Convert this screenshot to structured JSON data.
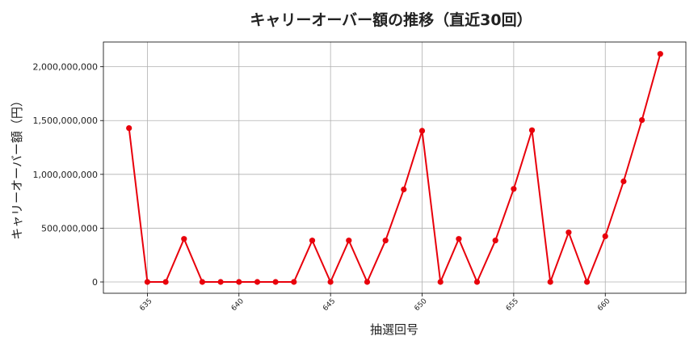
{
  "chart_data": {
    "type": "line",
    "title": "キャリーオーバー額の推移（直近30回）",
    "xlabel": "抽選回号",
    "ylabel": "キャリーオーバー額（円）",
    "x": [
      634,
      635,
      636,
      637,
      638,
      639,
      640,
      641,
      642,
      643,
      644,
      645,
      646,
      647,
      648,
      649,
      650,
      651,
      652,
      653,
      654,
      655,
      656,
      657,
      658,
      659,
      660,
      661,
      662,
      663
    ],
    "values": [
      1430000000,
      0,
      0,
      400000000,
      0,
      0,
      0,
      0,
      0,
      0,
      385000000,
      0,
      385000000,
      0,
      385000000,
      860000000,
      1405000000,
      0,
      400000000,
      0,
      385000000,
      865000000,
      1410000000,
      0,
      460000000,
      0,
      425000000,
      935000000,
      1505000000,
      2120000000
    ],
    "xlim": [
      632.6,
      664.4
    ],
    "ylim": [
      -105000000,
      2230000000
    ],
    "xticks": [
      635,
      640,
      645,
      650,
      655,
      660
    ],
    "yticks": [
      0,
      500000000,
      1000000000,
      1500000000,
      2000000000
    ],
    "ytick_labels": [
      "0",
      "500,000,000",
      "1,000,000,000",
      "1,500,000,000",
      "2,000,000,000"
    ],
    "grid": true,
    "line_color": "#e8000b",
    "marker_color": "#e8000b"
  }
}
